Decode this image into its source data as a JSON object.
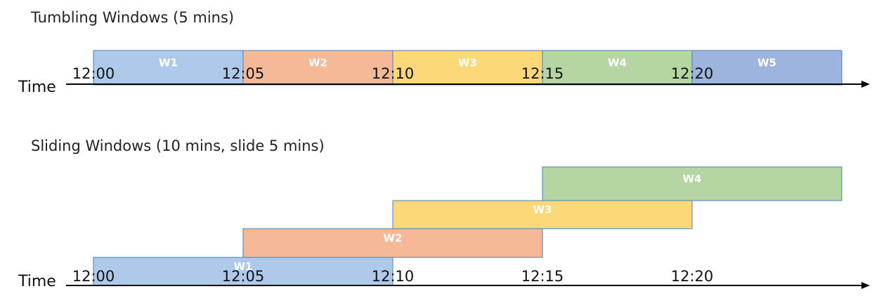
{
  "tumbling": {
    "title": "Tumbling Windows (5 mins)",
    "axis_label": "Time",
    "ticks": [
      "12:00",
      "12:05",
      "12:10",
      "12:15",
      "12:20"
    ],
    "windows": [
      {
        "label": "W1",
        "start": 0,
        "end": 5,
        "fill": "#AEC9EA",
        "stroke": "#4A7FB5"
      },
      {
        "label": "W2",
        "start": 5,
        "end": 10,
        "fill": "#F4B996",
        "stroke": "#4A7FB5"
      },
      {
        "label": "W3",
        "start": 10,
        "end": 15,
        "fill": "#FDD878",
        "stroke": "#4A7FB5"
      },
      {
        "label": "W4",
        "start": 15,
        "end": 20,
        "fill": "#B5D6A2",
        "stroke": "#4A7FB5"
      },
      {
        "label": "W5",
        "start": 20,
        "end": 25,
        "fill": "#9DB4DF",
        "stroke": "#4A7FB5"
      }
    ]
  },
  "sliding": {
    "title": "Sliding Windows (10 mins, slide 5 mins)",
    "axis_label": "Time",
    "ticks": [
      "12:00",
      "12:05",
      "12:10",
      "12:15",
      "12:20"
    ],
    "windows": [
      {
        "label": "W1",
        "start": 0,
        "end": 10,
        "fill": "#AEC9EA",
        "stroke": "#4A7FB5"
      },
      {
        "label": "W2",
        "start": 5,
        "end": 15,
        "fill": "#F4B996",
        "stroke": "#4A7FB5"
      },
      {
        "label": "W3",
        "start": 10,
        "end": 20,
        "fill": "#FDD878",
        "stroke": "#4A7FB5"
      },
      {
        "label": "W4",
        "start": 15,
        "end": 25,
        "fill": "#B5D6A2",
        "stroke": "#4A7FB5"
      }
    ]
  }
}
